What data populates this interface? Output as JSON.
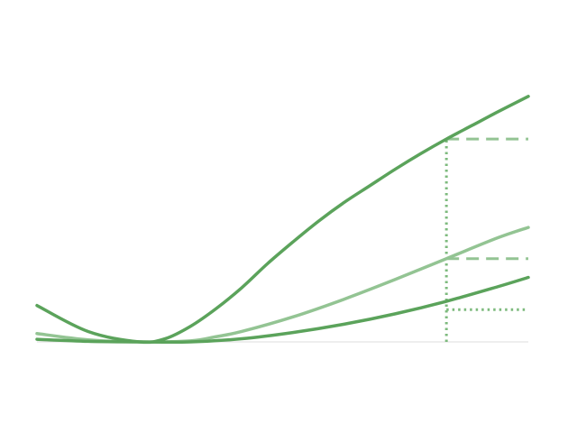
{
  "chart_data": {
    "type": "line",
    "title": "",
    "xlabel": "",
    "ylabel": "",
    "xlim": [
      -1,
      3.8
    ],
    "ylim": [
      0,
      3.0
    ],
    "grid": false,
    "baseline_color": "#dddddd",
    "series": [
      {
        "color": "#5ba35b",
        "line_style": "solid",
        "stroke_width": 3.5,
        "points": [
          [
            -1,
            0.35
          ],
          [
            -0.5,
            0.1
          ],
          [
            0,
            0
          ],
          [
            0.25,
            0.03
          ],
          [
            0.5,
            0.15
          ],
          [
            0.75,
            0.32
          ],
          [
            1.0,
            0.52
          ],
          [
            1.25,
            0.75
          ],
          [
            1.5,
            0.96
          ],
          [
            1.75,
            1.16
          ],
          [
            2.0,
            1.34
          ],
          [
            2.25,
            1.5
          ],
          [
            2.5,
            1.66
          ],
          [
            2.75,
            1.81
          ],
          [
            3.0,
            1.95
          ],
          [
            3.25,
            2.08
          ],
          [
            3.5,
            2.21
          ],
          [
            3.8,
            2.36
          ]
        ]
      },
      {
        "color": "#93c493",
        "line_style": "solid",
        "stroke_width": 3.5,
        "points": [
          [
            -1,
            0.08
          ],
          [
            -0.5,
            0.02
          ],
          [
            0,
            0
          ],
          [
            0.5,
            0.01
          ],
          [
            0.75,
            0.05
          ],
          [
            1.0,
            0.1
          ],
          [
            1.5,
            0.24
          ],
          [
            2.0,
            0.41
          ],
          [
            2.5,
            0.6
          ],
          [
            3.0,
            0.8
          ],
          [
            3.5,
            1.0
          ],
          [
            3.8,
            1.1
          ]
        ]
      },
      {
        "color": "#5ba35b",
        "line_style": "solid",
        "stroke_width": 3.5,
        "points": [
          [
            -1,
            0.025
          ],
          [
            -0.5,
            0.005
          ],
          [
            0,
            0
          ],
          [
            0.5,
            0.0
          ],
          [
            1.0,
            0.03
          ],
          [
            1.5,
            0.09
          ],
          [
            2.0,
            0.17
          ],
          [
            2.5,
            0.27
          ],
          [
            3.0,
            0.39
          ],
          [
            3.5,
            0.53
          ],
          [
            3.8,
            0.62
          ]
        ]
      }
    ],
    "annotations": [
      {
        "type": "vline",
        "x": 3.0,
        "y_from": 0,
        "y_to": 1.95,
        "color": "#7dba7d",
        "line_style": "dotted"
      },
      {
        "type": "hline",
        "y": 1.95,
        "x_from": 3.0,
        "x_to": 3.8,
        "color": "#93c493",
        "line_style": "dashed"
      },
      {
        "type": "hline",
        "y": 0.8,
        "x_from": 3.0,
        "x_to": 3.8,
        "color": "#93c493",
        "line_style": "dashed"
      },
      {
        "type": "hline",
        "y": 0.31,
        "x_from": 3.0,
        "x_to": 3.8,
        "color": "#7dba7d",
        "line_style": "dotted"
      }
    ]
  }
}
